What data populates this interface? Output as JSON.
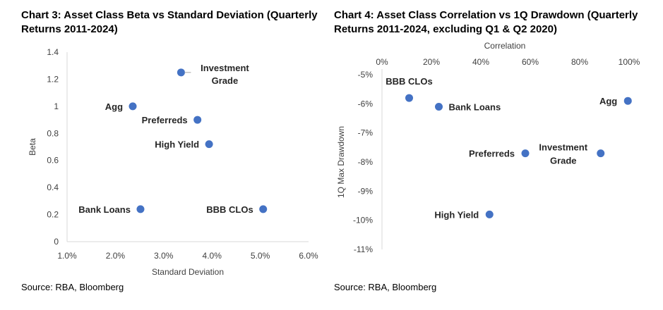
{
  "chart_data": [
    {
      "type": "scatter",
      "title": "Chart 3: Asset Class Beta vs Standard Deviation (Quarterly Returns 2011-2024)",
      "source": "Source: RBA, Bloomberg",
      "xlabel": "Standard Deviation",
      "ylabel": "Beta",
      "xlim": [
        0.01,
        0.06
      ],
      "ylim": [
        0,
        1.4
      ],
      "xticks": [
        0.01,
        0.02,
        0.03,
        0.04,
        0.05,
        0.06
      ],
      "xtick_labels": [
        "1.0%",
        "2.0%",
        "3.0%",
        "4.0%",
        "5.0%",
        "6.0%"
      ],
      "yticks": [
        0,
        0.2,
        0.4,
        0.6,
        0.8,
        1,
        1.2,
        1.4
      ],
      "ytick_labels": [
        "0",
        "0.2",
        "0.4",
        "0.6",
        "0.8",
        "1",
        "1.2",
        "1.4"
      ],
      "x_axis_position": "bottom",
      "grid": false,
      "marker_color": "#4472C4",
      "points": [
        {
          "label": [
            "Investment",
            "Grade"
          ],
          "x": 0.0336,
          "y": 1.25,
          "label_anchor": "right",
          "leader": true
        },
        {
          "label": [
            "Agg"
          ],
          "x": 0.0236,
          "y": 1.0,
          "label_anchor": "left"
        },
        {
          "label": [
            "Preferreds"
          ],
          "x": 0.037,
          "y": 0.9,
          "label_anchor": "left"
        },
        {
          "label": [
            "High Yield"
          ],
          "x": 0.0394,
          "y": 0.72,
          "label_anchor": "left"
        },
        {
          "label": [
            "Bank Loans"
          ],
          "x": 0.0252,
          "y": 0.24,
          "label_anchor": "left"
        },
        {
          "label": [
            "BBB CLOs"
          ],
          "x": 0.0506,
          "y": 0.24,
          "label_anchor": "left"
        }
      ]
    },
    {
      "type": "scatter",
      "title": "Chart 4: Asset Class Correlation vs 1Q Drawdown (Quarterly Returns 2011-2024, excluding Q1 & Q2 2020)",
      "source": "Source: RBA, Bloomberg",
      "xlabel": "Correlation",
      "ylabel": "1Q Max Drawdown",
      "xlim": [
        0,
        1
      ],
      "ylim": [
        -0.11,
        -0.05
      ],
      "xticks": [
        0,
        0.2,
        0.4,
        0.6,
        0.8,
        1
      ],
      "xtick_labels": [
        "0%",
        "20%",
        "40%",
        "60%",
        "80%",
        "100%"
      ],
      "yticks": [
        -0.05,
        -0.06,
        -0.07,
        -0.08,
        -0.09,
        -0.1,
        -0.11
      ],
      "ytick_labels": [
        "-5%",
        "-6%",
        "-7%",
        "-8%",
        "-9%",
        "-10%",
        "-11%"
      ],
      "x_axis_position": "top",
      "grid": false,
      "marker_color": "#4472C4",
      "points": [
        {
          "label": [
            "BBB CLOs"
          ],
          "x": 0.11,
          "y": -0.058,
          "label_anchor": "above"
        },
        {
          "label": [
            "Bank Loans"
          ],
          "x": 0.23,
          "y": -0.061,
          "label_anchor": "right"
        },
        {
          "label": [
            "Agg"
          ],
          "x": 0.995,
          "y": -0.059,
          "label_anchor": "left"
        },
        {
          "label": [
            "Preferreds"
          ],
          "x": 0.58,
          "y": -0.077,
          "label_anchor": "left"
        },
        {
          "label": [
            "Investment",
            "Grade"
          ],
          "x": 0.885,
          "y": -0.077,
          "label_anchor": "left"
        },
        {
          "label": [
            "High Yield"
          ],
          "x": 0.435,
          "y": -0.098,
          "label_anchor": "left"
        }
      ]
    }
  ]
}
